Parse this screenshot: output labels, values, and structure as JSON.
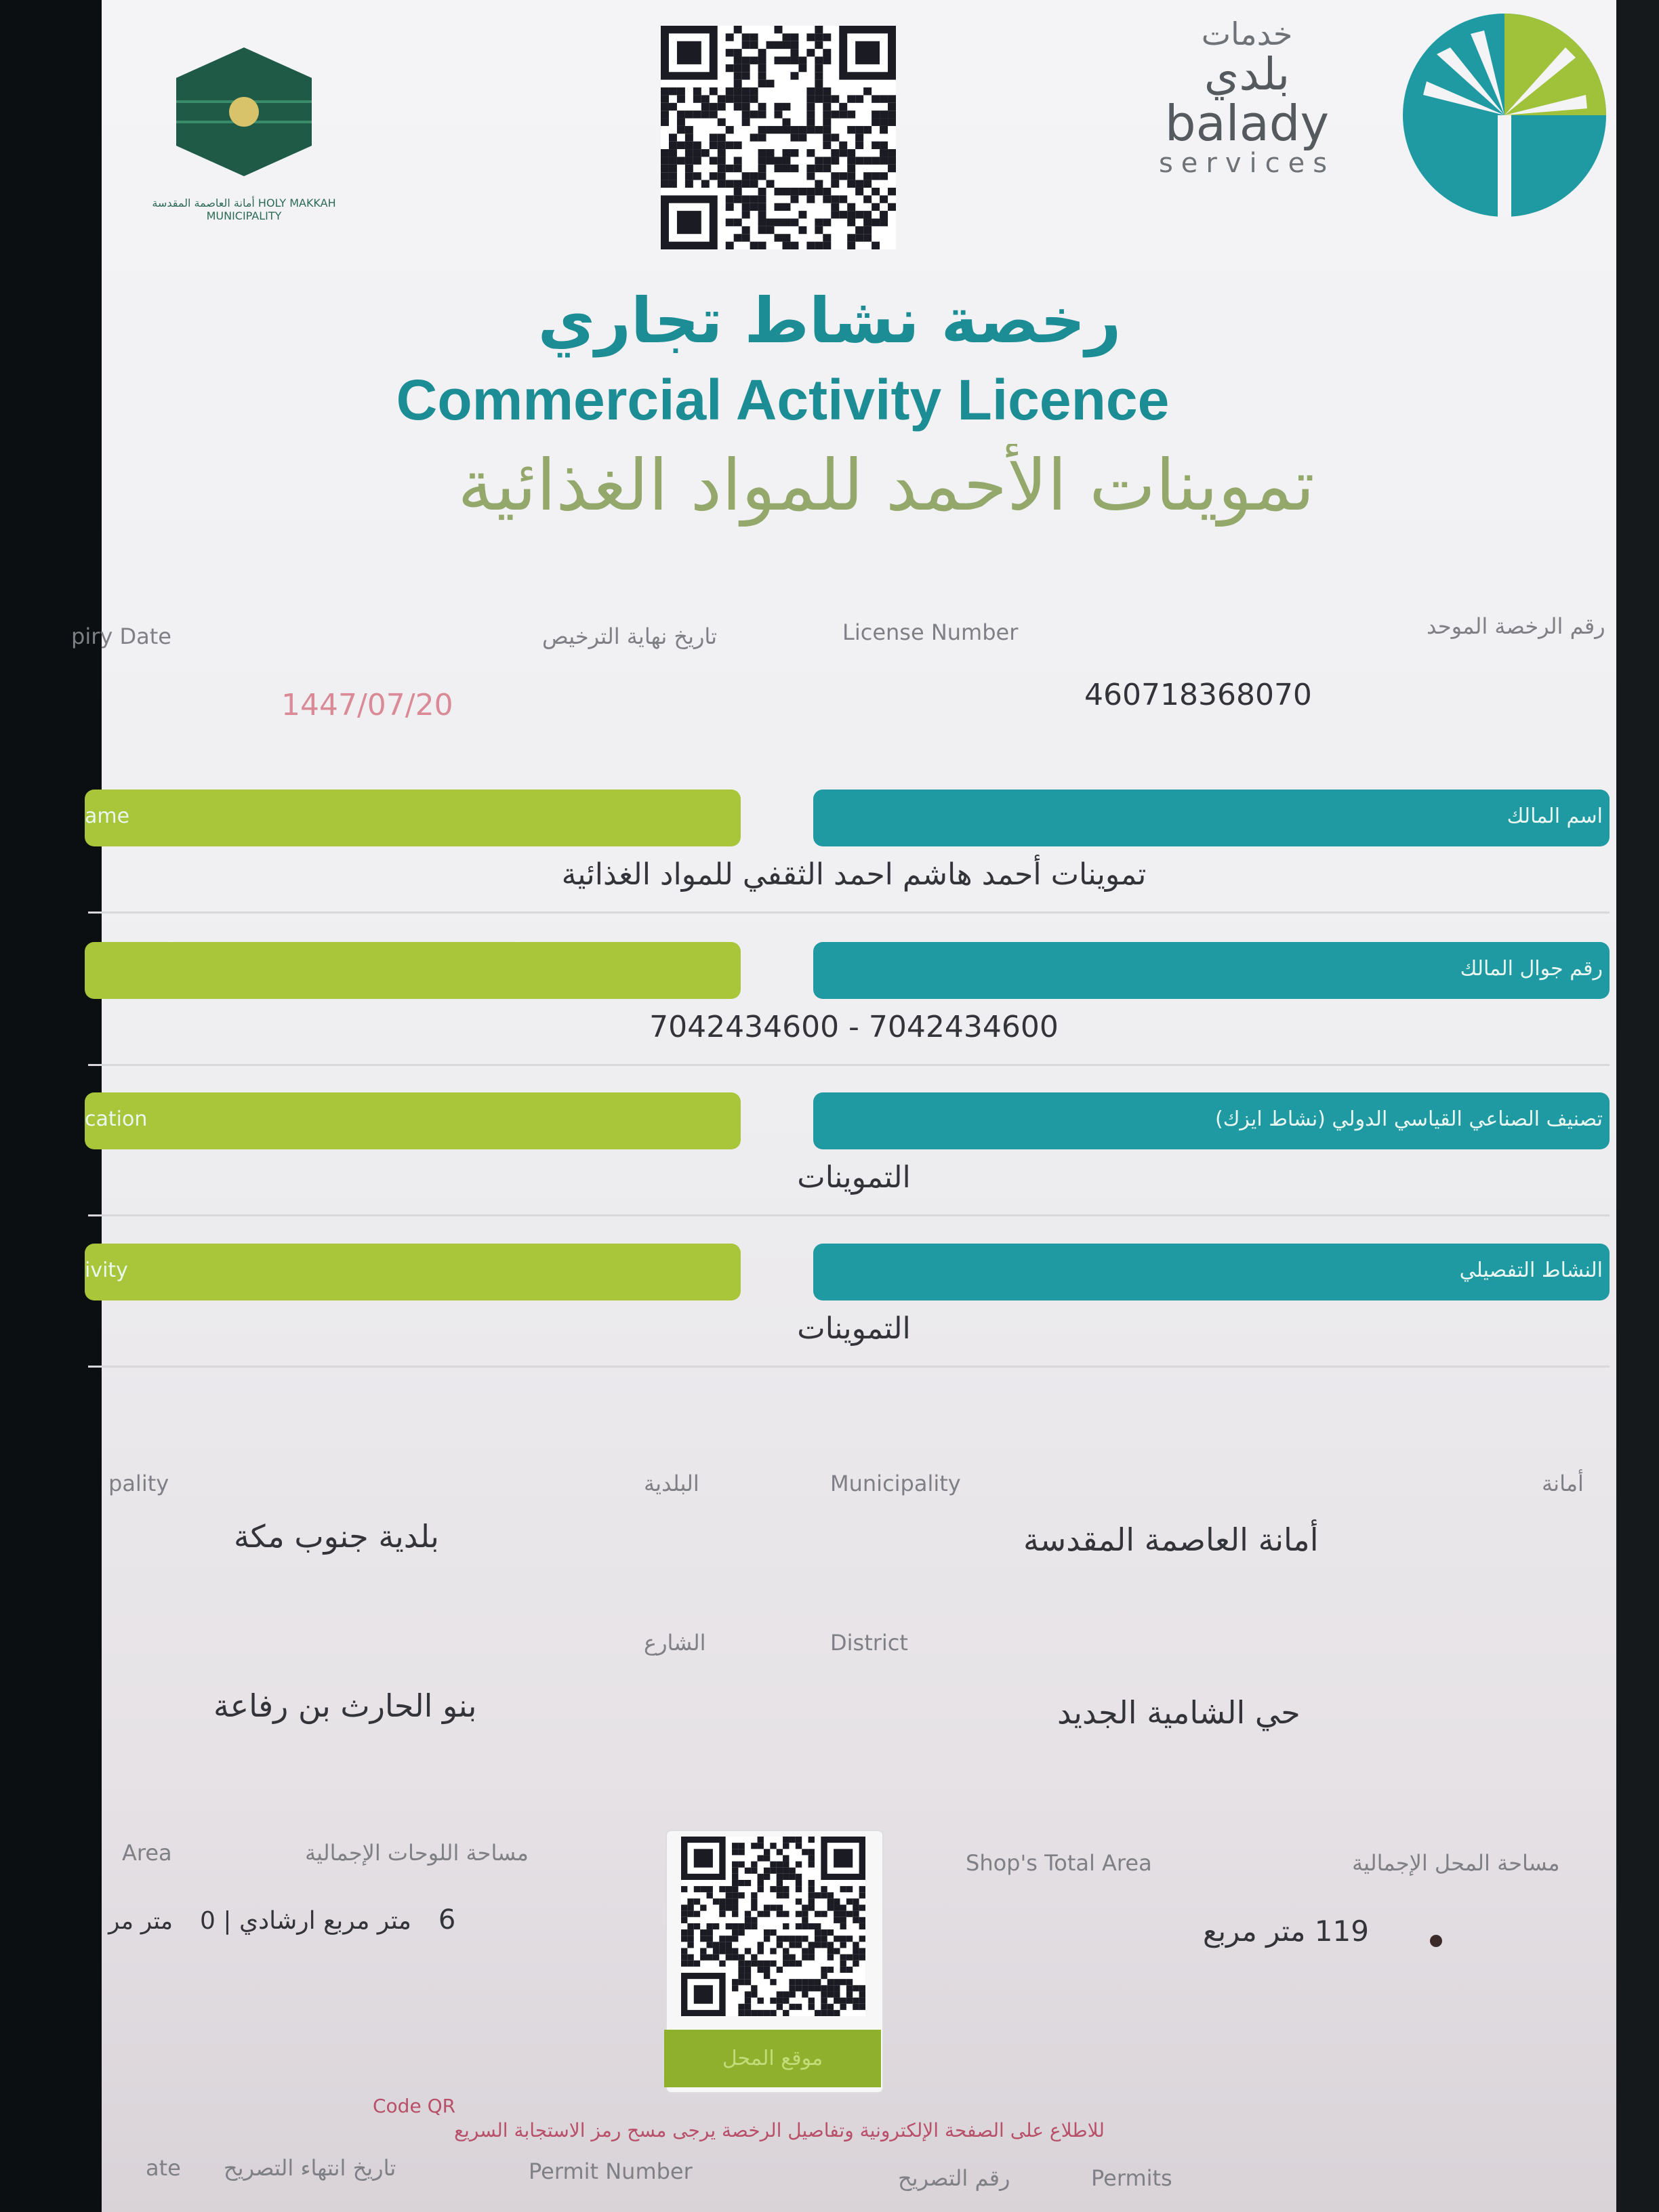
{
  "header": {
    "municipality_logo_text": "أمانة العاصمة المقدسة HOLY MAKKAH MUNICIPALITY",
    "balady_ar_1": "خدمات",
    "balady_ar_2": "بلدي",
    "balady_en": "balady",
    "balady_services": "services"
  },
  "title": {
    "arabic": "رخصة نشاط تجاري",
    "english": "Commercial Activity Licence",
    "shop_name": "تموينات الأحمد للمواد الغذائية"
  },
  "license_row": {
    "expiry_label_en": "piry Date",
    "expiry_label_ar": "تاريخ نهاية الترخيص",
    "license_number_label_en": "License Number",
    "license_number_label_ar": "رقم الرخصة الموحد",
    "expiry_value": "1447/07/20",
    "license_number_value": "460718368070"
  },
  "fields": [
    {
      "label_en": "ame",
      "label_ar": "اسم المالك",
      "value": "تموينات أحمد هاشم احمد الثقفي للمواد الغذائية"
    },
    {
      "label_en": "",
      "label_ar": "رقم جوال المالك",
      "value": "7042434600 - 7042434600"
    },
    {
      "label_en": "cation",
      "label_ar": "تصنيف الصناعي القياسي الدولي (نشاط ايزك)",
      "value": "التموينات"
    },
    {
      "label_en": "ivity",
      "label_ar": "النشاط التفصيلي",
      "value": "التموينات"
    }
  ],
  "location": {
    "sub_municipality_label_en": "pality",
    "sub_municipality_label_ar": "البلدية",
    "municipality_label_en": "Municipality",
    "municipality_label_ar": "أمانة",
    "sub_municipality_value": "بلدية جنوب مكة",
    "municipality_value": "أمانة العاصمة المقدسة",
    "street_label_ar": "الشارع",
    "district_label_en": "District",
    "street_value": "بنو الحارث بن رفاعة",
    "district_value": "حي الشامية الجديد"
  },
  "area": {
    "signs_label_en": "Area",
    "signs_label_ar": "مساحة اللوحات الإجمالية",
    "signs_value_main": "6",
    "signs_value_unit": "متر مربع ارشادي | 0",
    "signs_value_cut": "متر مر",
    "shop_label_en": "Shop's Total Area",
    "shop_label_ar": "مساحة المحل الإجمالية",
    "shop_value": "119 متر مربع"
  },
  "qr_bottom": {
    "button_label": "موقع المحل"
  },
  "footer": {
    "note_line1": "Code QR",
    "note_line2": "للاطلاع على الصفحة الإلكترونية وتفاصيل الرخصة يرجى مسح رمز الاستجابة السريع",
    "permit_date_label_en": "ate",
    "permit_date_label_ar": "تاريخ انتهاء التصريح",
    "permit_number_label_en": "Permit Number",
    "permit_number_label_ar": "رقم التصريح",
    "permits_label_en": "Permits"
  },
  "colors": {
    "teal": "#1f9aa3",
    "green": "#a9c63a",
    "title_teal": "#1c8d94",
    "title_green": "#8fb02c",
    "expiry_pink": "#d98a96",
    "footer_red": "#b8506a"
  }
}
